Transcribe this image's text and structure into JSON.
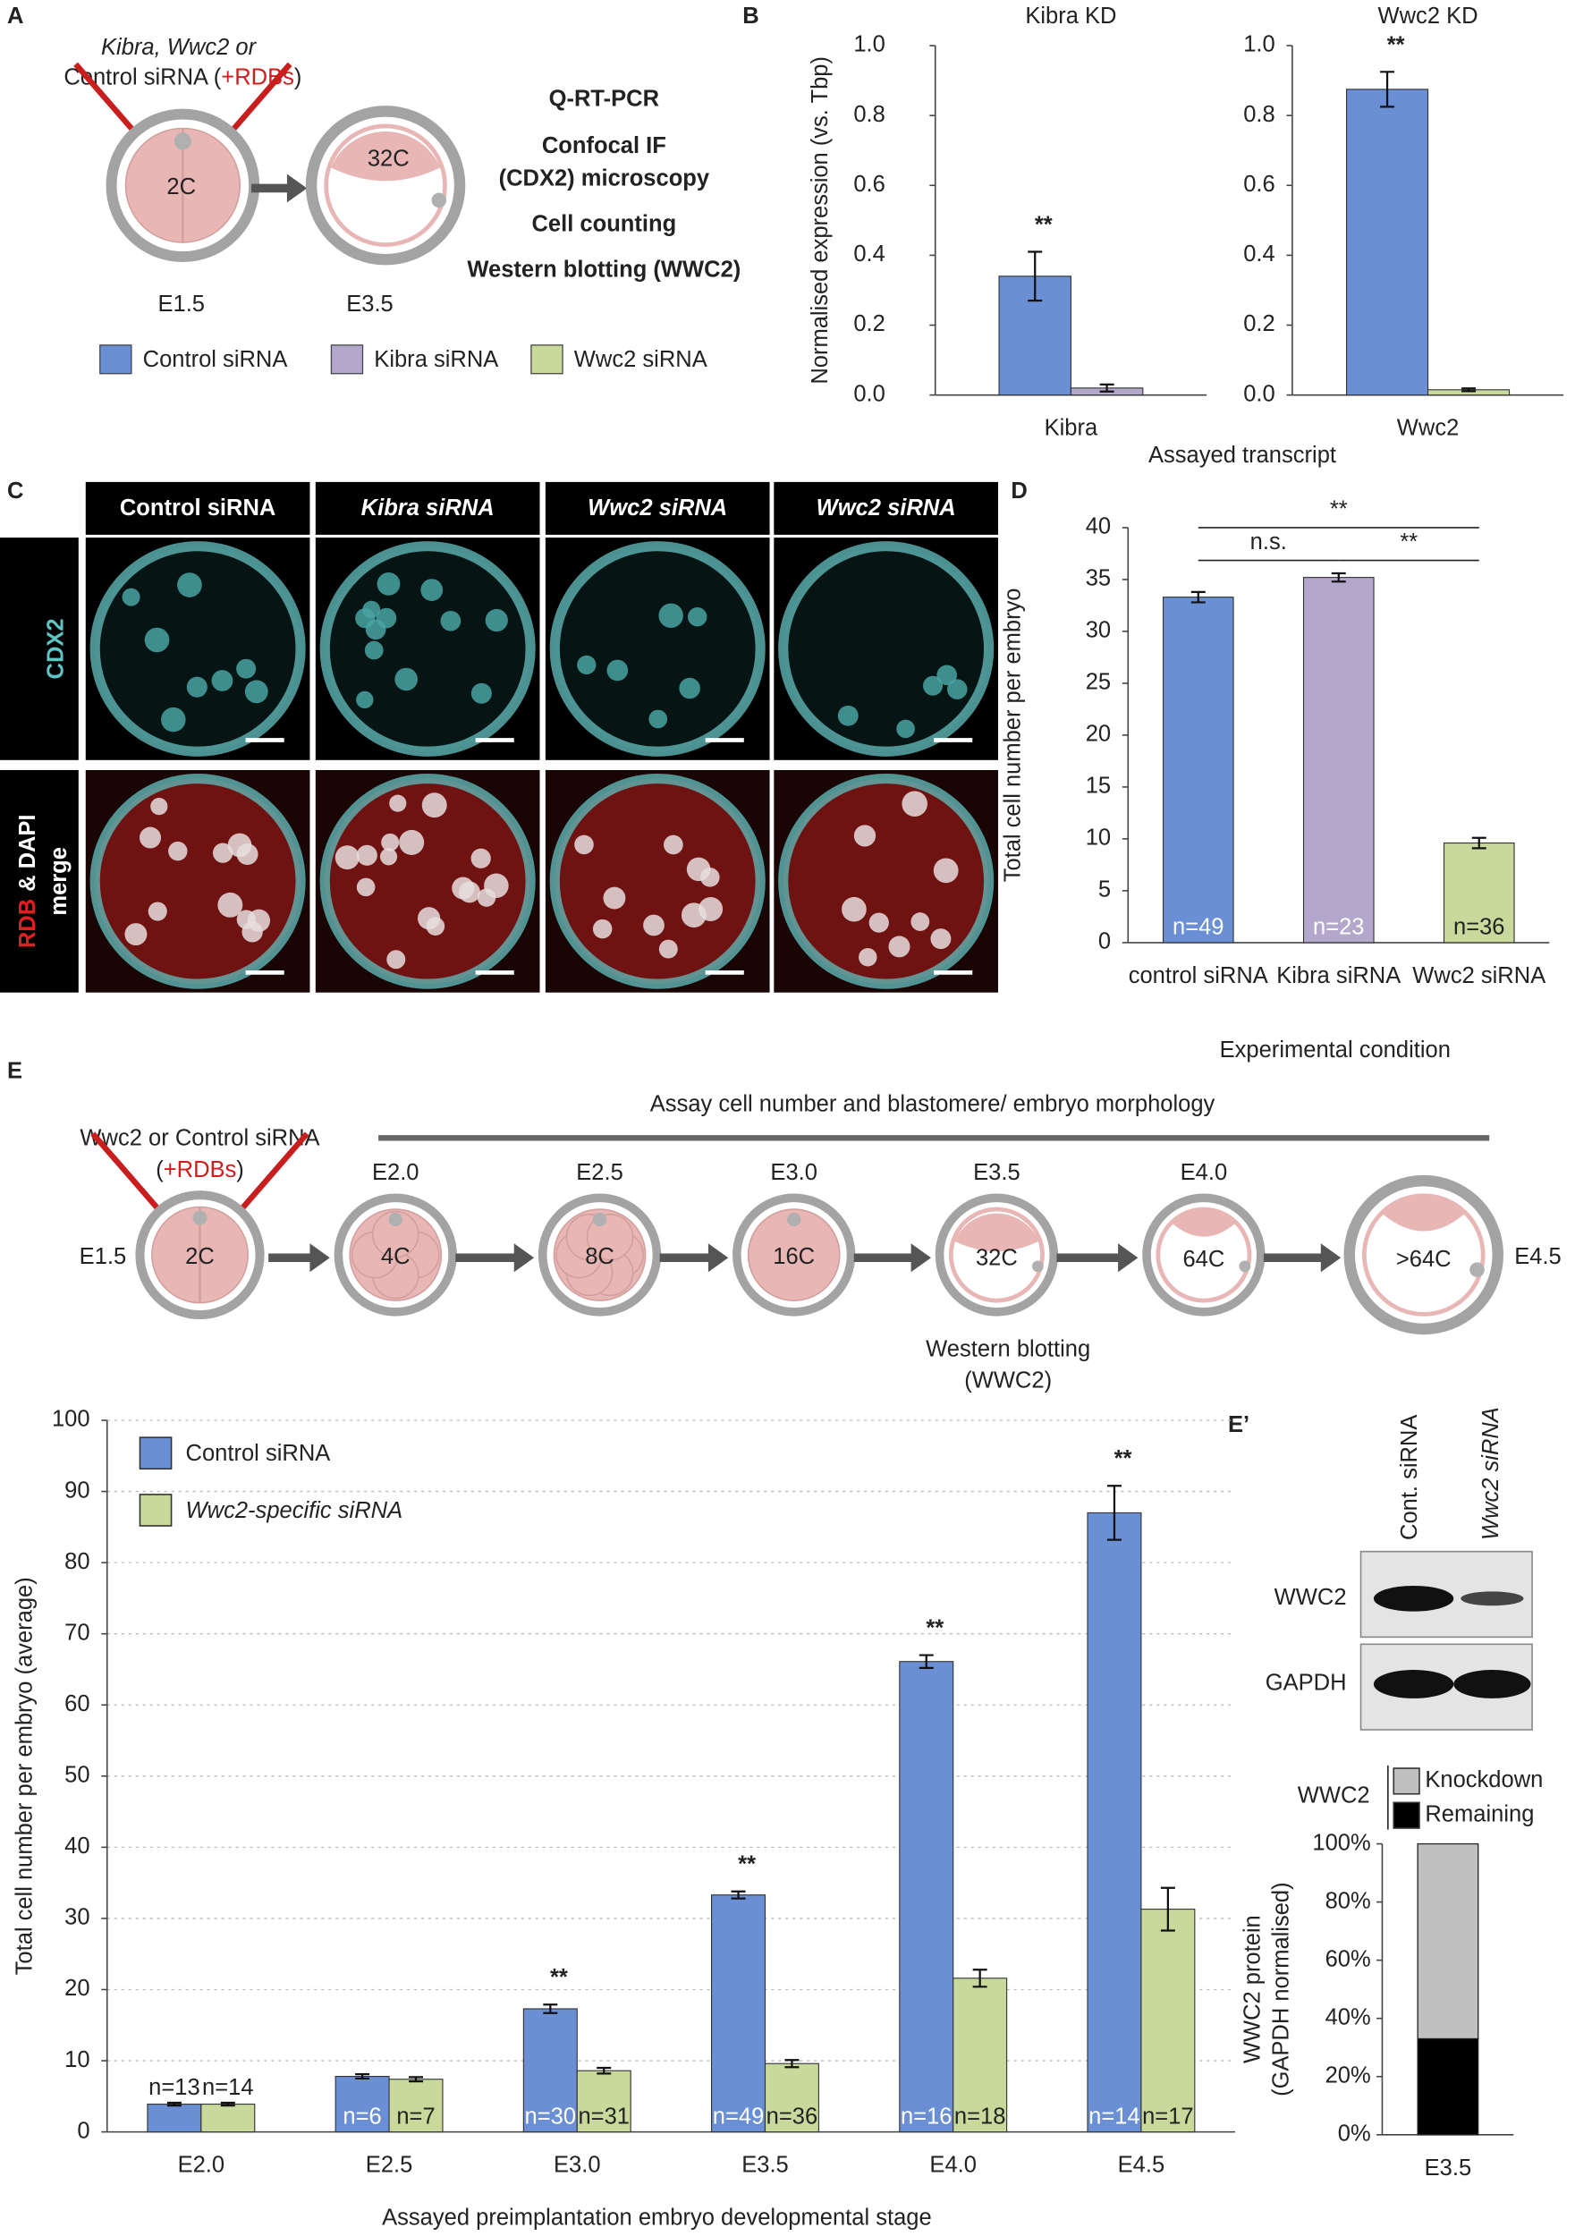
{
  "panels": {
    "A": "A",
    "B": "B",
    "C": "C",
    "D": "D",
    "E": "E",
    "E2": "E’"
  },
  "panel_a": {
    "injection": {
      "line1": "Kibra, Wwc2 or",
      "line2": "Control siRNA (",
      "rdbs": "+RDBs",
      "close": ")"
    },
    "start_cells": "2C",
    "end_cells": "32C",
    "start_day": "E1.5",
    "end_day": "E3.5",
    "methods": [
      "Q-RT-PCR",
      "Confocal IF",
      "(CDX2) microscopy",
      "Cell counting",
      "Western blotting (WWC2)"
    ]
  },
  "panel_c": {
    "columns": [
      "Control siRNA",
      "Kibra siRNA",
      "Wwc2 siRNA",
      "Wwc2 siRNA"
    ],
    "row_top": "CDX2",
    "row_bottom": {
      "red": "RDB",
      "rest": "& DAPI",
      "line2": "merge"
    }
  },
  "panel_e": {
    "injection": {
      "line1": "Wwc2 or Control siRNA",
      "open": "(",
      "rdbs": "+RDBs",
      "close": ")"
    },
    "assay": "Assay cell number and blastomere/ embryo morphology",
    "start_day": "E1.5",
    "start_cells": "2C",
    "end_day": "E4.5",
    "stages": [
      {
        "day": "E2.0",
        "cells": "4C"
      },
      {
        "day": "E2.5",
        "cells": "8C"
      },
      {
        "day": "E3.0",
        "cells": "16C"
      },
      {
        "day": "E3.5",
        "cells": "32C"
      },
      {
        "day": "E4.0",
        "cells": "64C"
      },
      {
        "day": null,
        "cells": ">64C"
      }
    ],
    "western": [
      "Western blotting",
      "(WWC2)"
    ]
  },
  "western_blot": {
    "lanes": [
      "Cont. siRNA",
      "Wwc2 siRNA"
    ],
    "proteins": [
      "WWC2",
      "GAPDH"
    ]
  },
  "chart_data": [
    {
      "type": "bar",
      "title": "Kibra KD",
      "categories": [
        "Kibra"
      ],
      "series": [
        {
          "name": "Control siRNA",
          "color": "#6a8fd4",
          "values": [
            0.34
          ],
          "errors": [
            0.07
          ]
        },
        {
          "name": "Kibra siRNA",
          "color": "#b4a7cc",
          "values": [
            0.02
          ],
          "errors": [
            0.01
          ]
        }
      ],
      "significance": [
        "**"
      ],
      "ylim": [
        0,
        1
      ],
      "yticks": [
        {
          "value": 0,
          "label": "0.0"
        },
        0.2,
        0.4,
        0.6,
        0.8,
        {
          "value": 1,
          "label": "1.0"
        }
      ],
      "ylabel": "Normalised expression (vs. Tbp)",
      "xlabel": "Assayed transcript"
    },
    {
      "type": "bar",
      "title": "Wwc2 KD",
      "categories": [
        "Wwc2"
      ],
      "series": [
        {
          "name": "Control siRNA",
          "color": "#6a8fd4",
          "values": [
            0.875
          ],
          "errors": [
            0.05
          ]
        },
        {
          "name": "Wwc2 siRNA",
          "color": "#c8d99b",
          "values": [
            0.015
          ],
          "errors": [
            0.004
          ]
        }
      ],
      "significance": [
        "**"
      ],
      "ylim": [
        0,
        1
      ],
      "yticks": [
        {
          "value": 0,
          "label": "0.0"
        },
        0.2,
        0.4,
        0.6,
        0.8,
        {
          "value": 1,
          "label": "1.0"
        }
      ]
    },
    {
      "type": "bar",
      "categories": [
        "control siRNA",
        "Kibra siRNA",
        "Wwc2 siRNA"
      ],
      "series": [
        {
          "colors": [
            "#6a8fd4",
            "#b4a7cc",
            "#c8d99b"
          ],
          "values": [
            33.3,
            35.2,
            9.6
          ],
          "errors": [
            0.5,
            0.4,
            0.5
          ],
          "n_labels": [
            "n=49",
            "n=23",
            "n=36"
          ]
        }
      ],
      "comparisons": [
        {
          "pair": [
            0,
            1
          ],
          "label": "n.s."
        },
        {
          "pair": [
            1,
            2
          ],
          "label": "**"
        },
        {
          "pair": [
            0,
            2
          ],
          "label": "**"
        }
      ],
      "ylim": [
        0,
        40
      ],
      "yticks": [
        0,
        5,
        10,
        15,
        20,
        25,
        30,
        35,
        40
      ],
      "ylabel": "Total cell number per embryo",
      "xlabel": "Experimental condition"
    },
    {
      "type": "bar",
      "categories": [
        "E2.0",
        "E2.5",
        "E3.0",
        "E3.5",
        "E4.0",
        "E4.5"
      ],
      "series": [
        {
          "name": "Control siRNA",
          "color": "#6a8fd4",
          "values": [
            3.9,
            7.8,
            17.3,
            33.3,
            66.1,
            87.0
          ],
          "errors": [
            0.2,
            0.3,
            0.6,
            0.5,
            0.9,
            3.8
          ],
          "n_labels": [
            "n=13",
            "n=6",
            "n=30",
            "n=49",
            "n=16",
            "n=14"
          ]
        },
        {
          "name": "Wwc2-specific siRNA",
          "color": "#c8d99b",
          "values": [
            3.9,
            7.4,
            8.6,
            9.6,
            21.6,
            31.3
          ],
          "errors": [
            0.2,
            0.3,
            0.4,
            0.5,
            1.2,
            3.0
          ],
          "n_labels": [
            "n=14",
            "n=7",
            "n=31",
            "n=36",
            "n=18",
            "n=17"
          ]
        }
      ],
      "significance": [
        null,
        null,
        "**",
        "**",
        "**",
        "**"
      ],
      "ylim": [
        0,
        100
      ],
      "yticks": [
        0,
        10,
        20,
        30,
        40,
        50,
        60,
        70,
        80,
        90,
        100
      ],
      "grid": true,
      "legend": "upper left",
      "ylabel": "Total cell number per embryo (average)",
      "xlabel": "Assayed preimplantation embryo developmental stage"
    },
    {
      "type": "stacked_bar",
      "categories": [
        "E3.5"
      ],
      "series": [
        {
          "name": "Remaining",
          "color": "#000000",
          "values": [
            33
          ]
        },
        {
          "name": "Knockdown",
          "color": "#c0c0c0",
          "values": [
            67
          ]
        }
      ],
      "legend_title": "WWC2",
      "ylim": [
        0,
        100
      ],
      "yticks": [
        {
          "value": 0,
          "label": "0%"
        },
        {
          "value": 20,
          "label": "20%"
        },
        {
          "value": 40,
          "label": "40%"
        },
        {
          "value": 60,
          "label": "60%"
        },
        {
          "value": 80,
          "label": "80%"
        },
        {
          "value": 100,
          "label": "100%"
        }
      ],
      "ylabel": [
        "WWC2 protein",
        "(GAPDH normalised)"
      ]
    }
  ]
}
